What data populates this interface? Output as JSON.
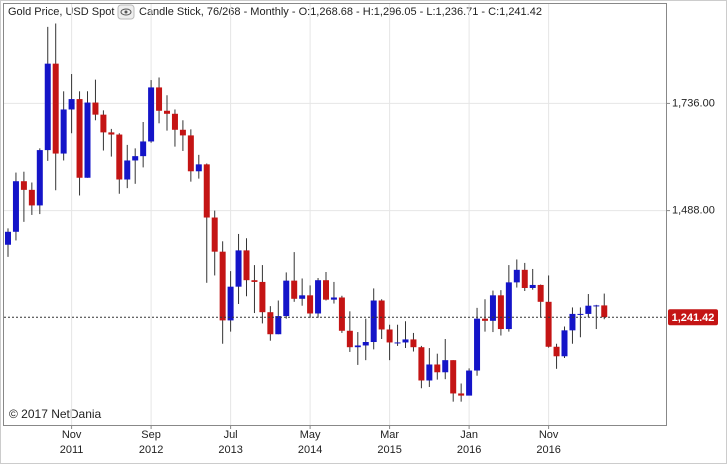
{
  "chart_data": {
    "type": "candlestick",
    "title": "Gold Price, USD Spot",
    "subtitle": "Candle Stick, 76/268 - Monthly - O:1,268.68 - H:1,296.05 - L:1,236.71 - C:1,241.42",
    "credit": "© 2017 NetDania",
    "categories": [
      null,
      null,
      null,
      null,
      null,
      null,
      null,
      null,
      "Nov 2011",
      null,
      null,
      null,
      null,
      null,
      null,
      null,
      null,
      null,
      "Sep 2012",
      null,
      null,
      null,
      null,
      null,
      null,
      null,
      null,
      null,
      "Jul 2013",
      null,
      null,
      null,
      null,
      null,
      null,
      null,
      null,
      null,
      "May 2014",
      null,
      null,
      null,
      null,
      null,
      null,
      null,
      null,
      null,
      "Mar 2015",
      null,
      null,
      null,
      null,
      null,
      null,
      null,
      null,
      null,
      "Jan 2016",
      null,
      null,
      null,
      null,
      null,
      null,
      null,
      null,
      null,
      "Nov 2016",
      null,
      null,
      null,
      null,
      null,
      null,
      null
    ],
    "open": [
      1409,
      1439,
      1556,
      1536,
      1500,
      1628,
      1828,
      1620,
      1722,
      1746,
      1564,
      1738,
      1710,
      1669,
      1664,
      1560,
      1604,
      1614,
      1648,
      1773,
      1719,
      1712,
      1675,
      1662,
      1579,
      1595,
      1472,
      1393,
      1234,
      1312,
      1396,
      1327,
      1323,
      1253,
      1202,
      1244,
      1326,
      1284,
      1292,
      1250,
      1327,
      1282,
      1287,
      1210,
      1172,
      1176,
      1184,
      1280,
      1213,
      1183,
      1183,
      1190,
      1172,
      1095,
      1132,
      1114,
      1142,
      1065,
      1060,
      1118,
      1238,
      1233,
      1292,
      1214,
      1322,
      1351,
      1309,
      1316,
      1277,
      1173,
      1151,
      1211,
      1249,
      1249,
      1268,
      1268.68
    ],
    "high": [
      1447,
      1576,
      1578,
      1553,
      1632,
      1913,
      1921,
      1764,
      1804,
      1764,
      1764,
      1791,
      1720,
      1677,
      1667,
      1640,
      1632,
      1693,
      1790,
      1796,
      1755,
      1722,
      1697,
      1676,
      1617,
      1597,
      1488,
      1417,
      1348,
      1434,
      1424,
      1362,
      1362,
      1267,
      1280,
      1345,
      1392,
      1331,
      1315,
      1332,
      1346,
      1323,
      1291,
      1255,
      1207,
      1238,
      1308,
      1283,
      1224,
      1224,
      1232,
      1205,
      1175,
      1170,
      1157,
      1191,
      1142,
      1088,
      1123,
      1263,
      1283,
      1303,
      1304,
      1362,
      1375,
      1367,
      1353,
      1317,
      1338,
      1180,
      1220,
      1264,
      1264,
      1295,
      1270,
      1296.05
    ],
    "low": [
      1381,
      1419,
      1462,
      1478,
      1480,
      1603,
      1535,
      1604,
      1667,
      1523,
      1564,
      1697,
      1627,
      1613,
      1527,
      1540,
      1550,
      1588,
      1645,
      1690,
      1673,
      1636,
      1626,
      1555,
      1562,
      1321,
      1338,
      1180,
      1208,
      1272,
      1290,
      1251,
      1227,
      1187,
      1202,
      1238,
      1277,
      1268,
      1240,
      1240,
      1280,
      1273,
      1205,
      1161,
      1131,
      1142,
      1167,
      1191,
      1142,
      1175,
      1170,
      1162,
      1077,
      1080,
      1097,
      1098,
      1046,
      1046,
      1061,
      1106,
      1208,
      1207,
      1199,
      1208,
      1310,
      1302,
      1305,
      1241,
      1171,
      1122,
      1147,
      1180,
      1195,
      1241,
      1214,
      1236.71
    ],
    "close": [
      1439,
      1556,
      1536,
      1500,
      1628,
      1828,
      1620,
      1722,
      1746,
      1564,
      1738,
      1710,
      1669,
      1664,
      1560,
      1604,
      1614,
      1648,
      1773,
      1719,
      1712,
      1675,
      1662,
      1579,
      1595,
      1472,
      1393,
      1234,
      1312,
      1396,
      1327,
      1323,
      1253,
      1202,
      1244,
      1326,
      1284,
      1292,
      1250,
      1327,
      1282,
      1287,
      1210,
      1172,
      1176,
      1184,
      1280,
      1213,
      1183,
      1183,
      1190,
      1172,
      1095,
      1132,
      1114,
      1142,
      1065,
      1060,
      1118,
      1238,
      1233,
      1292,
      1214,
      1322,
      1351,
      1309,
      1316,
      1277,
      1173,
      1151,
      1211,
      1249,
      1249,
      1268,
      1268.68,
      1241.42
    ],
    "up_color": "#1414c8",
    "down_color": "#c41414",
    "last_price": {
      "value": 1241.42,
      "label": "1,241.42"
    },
    "ylim": [
      992,
      1966
    ],
    "yticks": [
      {
        "value": 1488,
        "label": "1,488.00"
      },
      {
        "value": 1736,
        "label": "1,736.00"
      }
    ],
    "grid": true
  }
}
